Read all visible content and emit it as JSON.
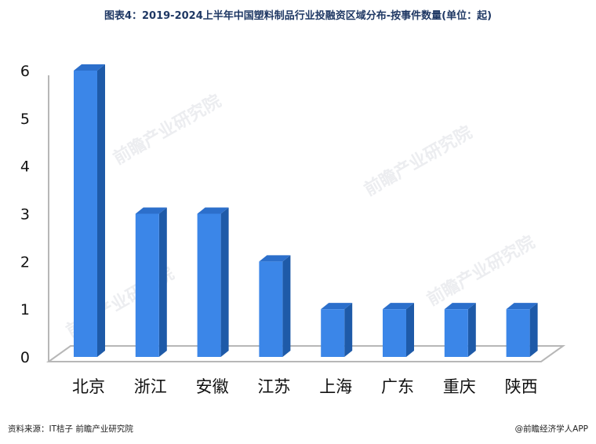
{
  "title": "图表4：2019-2024上半年中国塑料制品行业投融资区域分布-按事件数量(单位：起)",
  "source": "资料来源：IT桔子 前瞻产业研究院",
  "brand": "@前瞻经济学人APP",
  "watermark": "前瞻产业研究院",
  "colors": {
    "bar_front": "#3b86e8",
    "bar_side": "#1e5aa8",
    "bar_top": "#2c6fcb"
  },
  "chart_data": {
    "type": "bar",
    "title": "图表4：2019-2024上半年中国塑料制品行业投融资区域分布-按事件数量(单位：起)",
    "categories": [
      "北京",
      "浙江",
      "安徽",
      "江苏",
      "上海",
      "广东",
      "重庆",
      "陕西"
    ],
    "values": [
      6,
      3,
      3,
      2,
      1,
      1,
      1,
      1
    ],
    "yticks": [
      "0",
      "1",
      "2",
      "3",
      "4",
      "5",
      "6"
    ],
    "ylim": [
      0,
      6
    ],
    "grid": false,
    "legend": "none"
  }
}
